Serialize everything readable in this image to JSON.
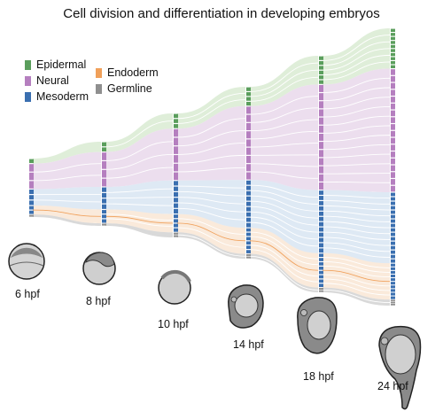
{
  "title": "Cell division and differentiation in developing embryos",
  "legend": [
    {
      "label": "Epidermal",
      "color": "#5a9e5c"
    },
    {
      "label": "Neural",
      "color": "#b57fbf"
    },
    {
      "label": "Mesoderm",
      "color": "#3a6fb0"
    },
    {
      "label": "Endoderm",
      "color": "#f0a05a"
    },
    {
      "label": "Germline",
      "color": "#8f8f8f"
    }
  ],
  "flow_colors": {
    "Epidermal": "#d4e8cc",
    "Neural": "#e5d3e8",
    "Mesoderm": "#d3e2f0",
    "Endoderm": "#f2c497",
    "Germline": "#cccccc"
  },
  "stages": [
    {
      "label": "6 hpf"
    },
    {
      "label": "8 hpf"
    },
    {
      "label": "10 hpf"
    },
    {
      "label": "14 hpf"
    },
    {
      "label": "18 hpf"
    },
    {
      "label": "24 hpf"
    }
  ]
}
